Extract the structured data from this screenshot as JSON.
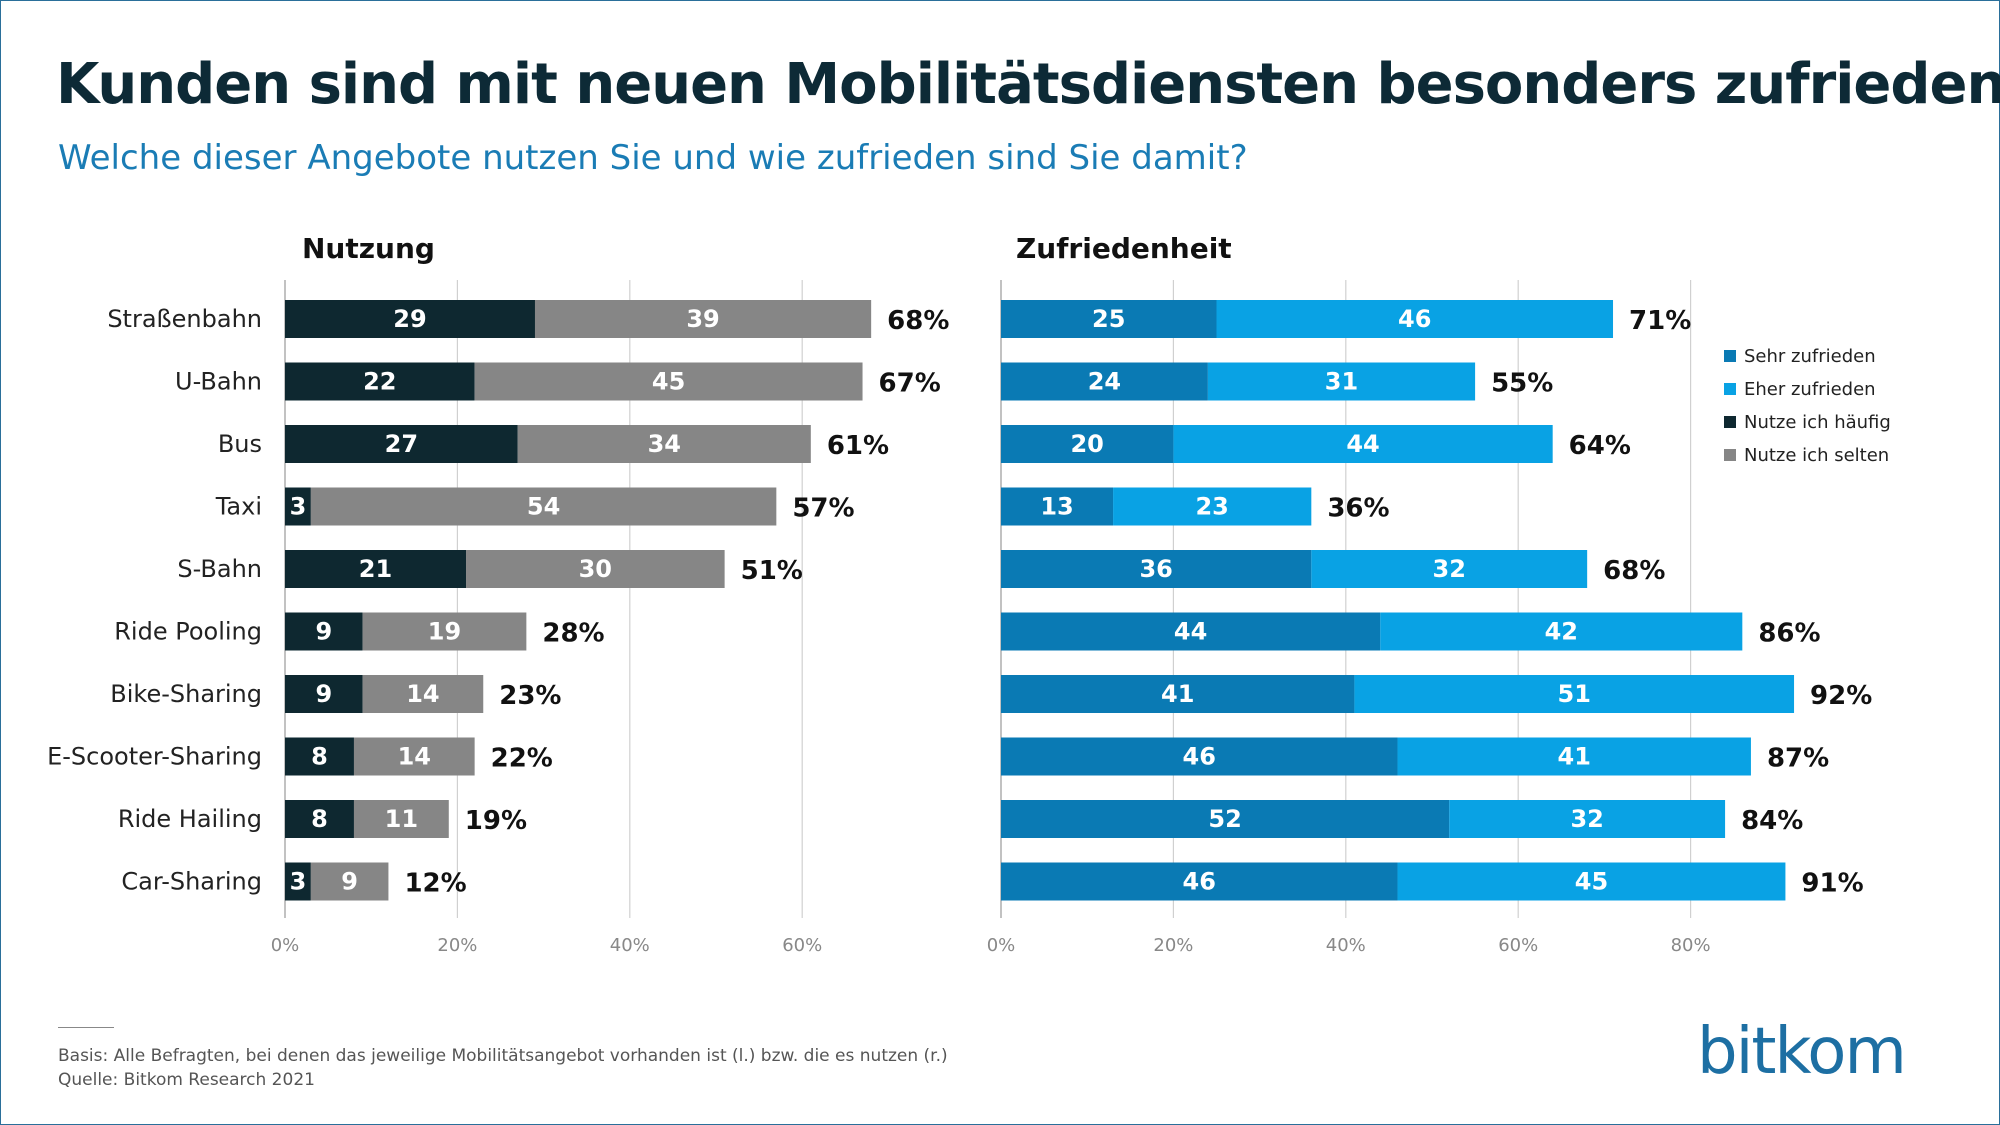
{
  "title": "Kunden sind mit neuen Mobilitätsdiensten besonders zufrieden",
  "subtitle": "Welche dieser Angebote nutzen Sie und wie zufrieden sind Sie damit?",
  "footer": {
    "basis": "Basis: Alle Befragten, bei denen das jeweilige Mobilitätsangebot vorhanden ist (l.) bzw. die es nutzen (r.)",
    "quelle": "Quelle: Bitkom Research 2021"
  },
  "logo": "bitkom",
  "colors": {
    "haeufig": "#0e2830",
    "selten": "#868686",
    "sehr": "#0a7ab4",
    "eher": "#09a2e4",
    "grid": "#d0d0d0"
  },
  "legend": [
    {
      "label": "Sehr zufrieden",
      "color": "#0a7ab4"
    },
    {
      "label": "Eher zufrieden",
      "color": "#09a2e4"
    },
    {
      "label": "Nutze ich häufig",
      "color": "#0e2830"
    },
    {
      "label": "Nutze ich selten",
      "color": "#868686"
    }
  ],
  "chart_data": [
    {
      "type": "bar",
      "orientation": "horizontal",
      "stacked": true,
      "title": "Nutzung",
      "categories": [
        "Straßenbahn",
        "U-Bahn",
        "Bus",
        "Taxi",
        "S-Bahn",
        "Ride Pooling",
        "Bike-Sharing",
        "E-Scooter-Sharing",
        "Ride Hailing",
        "Car-Sharing"
      ],
      "series": [
        {
          "name": "Nutze ich häufig",
          "values": [
            29,
            22,
            27,
            3,
            21,
            9,
            9,
            8,
            8,
            3
          ]
        },
        {
          "name": "Nutze ich selten",
          "values": [
            39,
            45,
            34,
            54,
            30,
            19,
            14,
            14,
            11,
            9
          ]
        }
      ],
      "totals": [
        "68%",
        "67%",
        "61%",
        "57%",
        "51%",
        "28%",
        "23%",
        "22%",
        "19%",
        "12%"
      ],
      "xlim": [
        0,
        70
      ],
      "xticks": [
        "0%",
        "20%",
        "40%",
        "60%"
      ],
      "grid": true
    },
    {
      "type": "bar",
      "orientation": "horizontal",
      "stacked": true,
      "title": "Zufriedenheit",
      "categories": [
        "Straßenbahn",
        "U-Bahn",
        "Bus",
        "Taxi",
        "S-Bahn",
        "Ride Pooling",
        "Bike-Sharing",
        "E-Scooter-Sharing",
        "Ride Hailing",
        "Car-Sharing"
      ],
      "series": [
        {
          "name": "Sehr zufrieden",
          "values": [
            25,
            24,
            20,
            13,
            36,
            44,
            41,
            46,
            52,
            46
          ]
        },
        {
          "name": "Eher zufrieden",
          "values": [
            46,
            31,
            44,
            23,
            32,
            42,
            51,
            41,
            32,
            45
          ]
        }
      ],
      "totals": [
        "71%",
        "55%",
        "64%",
        "36%",
        "68%",
        "86%",
        "92%",
        "87%",
        "84%",
        "91%"
      ],
      "xlim": [
        0,
        92
      ],
      "xticks": [
        "0%",
        "20%",
        "40%",
        "60%",
        "80%"
      ],
      "grid": true,
      "legend": "right"
    }
  ]
}
